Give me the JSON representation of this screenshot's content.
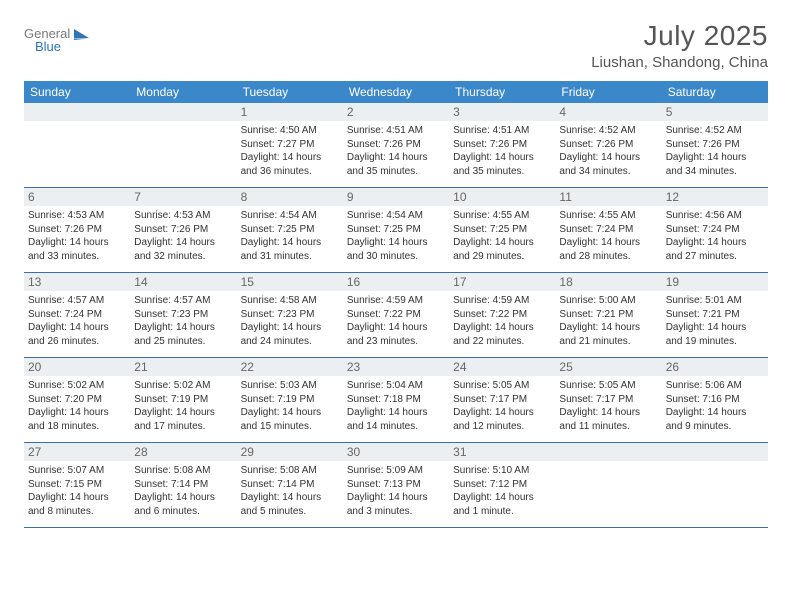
{
  "logo": {
    "word1": "General",
    "word2": "Blue"
  },
  "title": "July 2025",
  "location": "Liushan, Shandong, China",
  "colors": {
    "header_bg": "#3a87c9",
    "header_text": "#ffffff",
    "daynum_bg": "#eceff1",
    "week_border": "#3a6ea5",
    "logo_gray": "#7a7a7a",
    "logo_blue": "#2f74b5",
    "title_color": "#555555"
  },
  "dow": [
    "Sunday",
    "Monday",
    "Tuesday",
    "Wednesday",
    "Thursday",
    "Friday",
    "Saturday"
  ],
  "weeks": [
    [
      null,
      null,
      {
        "n": "1",
        "sr": "4:50 AM",
        "ss": "7:27 PM",
        "dl": "14 hours and 36 minutes."
      },
      {
        "n": "2",
        "sr": "4:51 AM",
        "ss": "7:26 PM",
        "dl": "14 hours and 35 minutes."
      },
      {
        "n": "3",
        "sr": "4:51 AM",
        "ss": "7:26 PM",
        "dl": "14 hours and 35 minutes."
      },
      {
        "n": "4",
        "sr": "4:52 AM",
        "ss": "7:26 PM",
        "dl": "14 hours and 34 minutes."
      },
      {
        "n": "5",
        "sr": "4:52 AM",
        "ss": "7:26 PM",
        "dl": "14 hours and 34 minutes."
      }
    ],
    [
      {
        "n": "6",
        "sr": "4:53 AM",
        "ss": "7:26 PM",
        "dl": "14 hours and 33 minutes."
      },
      {
        "n": "7",
        "sr": "4:53 AM",
        "ss": "7:26 PM",
        "dl": "14 hours and 32 minutes."
      },
      {
        "n": "8",
        "sr": "4:54 AM",
        "ss": "7:25 PM",
        "dl": "14 hours and 31 minutes."
      },
      {
        "n": "9",
        "sr": "4:54 AM",
        "ss": "7:25 PM",
        "dl": "14 hours and 30 minutes."
      },
      {
        "n": "10",
        "sr": "4:55 AM",
        "ss": "7:25 PM",
        "dl": "14 hours and 29 minutes."
      },
      {
        "n": "11",
        "sr": "4:55 AM",
        "ss": "7:24 PM",
        "dl": "14 hours and 28 minutes."
      },
      {
        "n": "12",
        "sr": "4:56 AM",
        "ss": "7:24 PM",
        "dl": "14 hours and 27 minutes."
      }
    ],
    [
      {
        "n": "13",
        "sr": "4:57 AM",
        "ss": "7:24 PM",
        "dl": "14 hours and 26 minutes."
      },
      {
        "n": "14",
        "sr": "4:57 AM",
        "ss": "7:23 PM",
        "dl": "14 hours and 25 minutes."
      },
      {
        "n": "15",
        "sr": "4:58 AM",
        "ss": "7:23 PM",
        "dl": "14 hours and 24 minutes."
      },
      {
        "n": "16",
        "sr": "4:59 AM",
        "ss": "7:22 PM",
        "dl": "14 hours and 23 minutes."
      },
      {
        "n": "17",
        "sr": "4:59 AM",
        "ss": "7:22 PM",
        "dl": "14 hours and 22 minutes."
      },
      {
        "n": "18",
        "sr": "5:00 AM",
        "ss": "7:21 PM",
        "dl": "14 hours and 21 minutes."
      },
      {
        "n": "19",
        "sr": "5:01 AM",
        "ss": "7:21 PM",
        "dl": "14 hours and 19 minutes."
      }
    ],
    [
      {
        "n": "20",
        "sr": "5:02 AM",
        "ss": "7:20 PM",
        "dl": "14 hours and 18 minutes."
      },
      {
        "n": "21",
        "sr": "5:02 AM",
        "ss": "7:19 PM",
        "dl": "14 hours and 17 minutes."
      },
      {
        "n": "22",
        "sr": "5:03 AM",
        "ss": "7:19 PM",
        "dl": "14 hours and 15 minutes."
      },
      {
        "n": "23",
        "sr": "5:04 AM",
        "ss": "7:18 PM",
        "dl": "14 hours and 14 minutes."
      },
      {
        "n": "24",
        "sr": "5:05 AM",
        "ss": "7:17 PM",
        "dl": "14 hours and 12 minutes."
      },
      {
        "n": "25",
        "sr": "5:05 AM",
        "ss": "7:17 PM",
        "dl": "14 hours and 11 minutes."
      },
      {
        "n": "26",
        "sr": "5:06 AM",
        "ss": "7:16 PM",
        "dl": "14 hours and 9 minutes."
      }
    ],
    [
      {
        "n": "27",
        "sr": "5:07 AM",
        "ss": "7:15 PM",
        "dl": "14 hours and 8 minutes."
      },
      {
        "n": "28",
        "sr": "5:08 AM",
        "ss": "7:14 PM",
        "dl": "14 hours and 6 minutes."
      },
      {
        "n": "29",
        "sr": "5:08 AM",
        "ss": "7:14 PM",
        "dl": "14 hours and 5 minutes."
      },
      {
        "n": "30",
        "sr": "5:09 AM",
        "ss": "7:13 PM",
        "dl": "14 hours and 3 minutes."
      },
      {
        "n": "31",
        "sr": "5:10 AM",
        "ss": "7:12 PM",
        "dl": "14 hours and 1 minute."
      },
      null,
      null
    ]
  ],
  "labels": {
    "sunrise": "Sunrise:",
    "sunset": "Sunset:",
    "daylight": "Daylight:"
  }
}
